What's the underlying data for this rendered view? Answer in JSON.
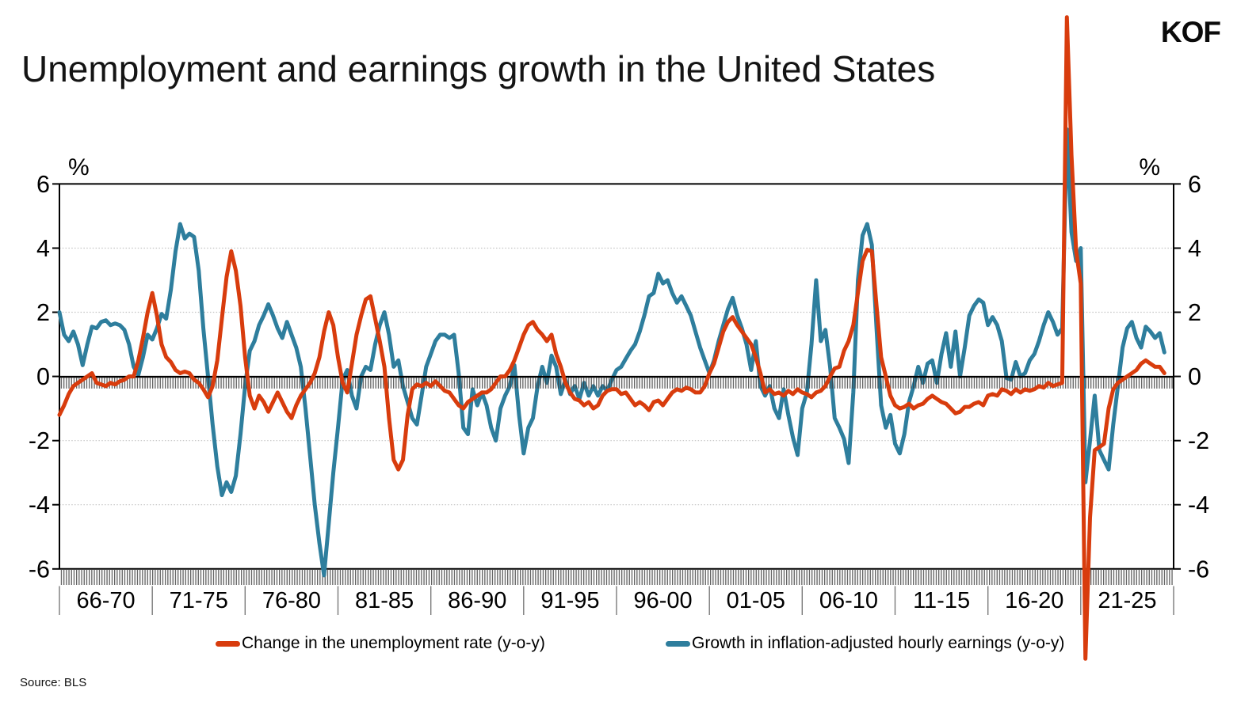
{
  "logo": "KOF",
  "source": "Source: BLS",
  "chart_data": {
    "type": "line",
    "title": "Unemployment and earnings growth in the United States",
    "unit_label_left": "%",
    "unit_label_right": "%",
    "ylim": [
      -6,
      6
    ],
    "yticks": [
      6,
      4,
      2,
      0,
      -2,
      -4,
      -6
    ],
    "gridlines_at": [
      4,
      2,
      -2,
      -4
    ],
    "grid": "dotted-horizontal",
    "legend_position": "bottom",
    "x_bin_labels": [
      "66-70",
      "71-75",
      "76-80",
      "81-85",
      "86-90",
      "91-95",
      "96-00",
      "01-05",
      "06-10",
      "11-15",
      "16-20",
      "21-25"
    ],
    "x_start": 1966,
    "x_end": 2026,
    "x_step_years": 0.25,
    "series": [
      {
        "name": "Change in the unemployment rate (y-o-y)",
        "color": "#d83c0d",
        "values": [
          -1.2,
          -0.9,
          -0.55,
          -0.3,
          -0.2,
          -0.1,
          0,
          0.1,
          -0.2,
          -0.25,
          -0.3,
          -0.2,
          -0.25,
          -0.15,
          -0.1,
          0,
          0,
          0.5,
          1.2,
          2,
          2.6,
          1.9,
          1,
          0.6,
          0.45,
          0.2,
          0.1,
          0.15,
          0.1,
          -0.1,
          -0.2,
          -0.4,
          -0.65,
          -0.3,
          0.5,
          1.8,
          3.1,
          3.9,
          3.3,
          2.2,
          0.6,
          -0.6,
          -1,
          -0.6,
          -0.8,
          -1.1,
          -0.8,
          -0.5,
          -0.8,
          -1.1,
          -1.3,
          -0.9,
          -0.6,
          -0.4,
          -0.2,
          0.1,
          0.6,
          1.4,
          2,
          1.6,
          0.6,
          -0.2,
          -0.5,
          0.4,
          1.3,
          1.9,
          2.4,
          2.5,
          1.8,
          1.1,
          0.3,
          -1.3,
          -2.6,
          -2.9,
          -2.6,
          -1.2,
          -0.4,
          -0.25,
          -0.3,
          -0.2,
          -0.3,
          -0.15,
          -0.3,
          -0.45,
          -0.5,
          -0.7,
          -0.9,
          -1,
          -0.8,
          -0.7,
          -0.6,
          -0.5,
          -0.5,
          -0.4,
          -0.2,
          0,
          0,
          0.2,
          0.5,
          0.9,
          1.3,
          1.6,
          1.7,
          1.45,
          1.3,
          1.1,
          1.3,
          0.7,
          0.3,
          -0.2,
          -0.5,
          -0.7,
          -0.75,
          -0.9,
          -0.8,
          -1,
          -0.9,
          -0.6,
          -0.45,
          -0.4,
          -0.4,
          -0.55,
          -0.5,
          -0.7,
          -0.9,
          -0.8,
          -0.9,
          -1.05,
          -0.8,
          -0.75,
          -0.9,
          -0.7,
          -0.5,
          -0.4,
          -0.45,
          -0.35,
          -0.4,
          -0.5,
          -0.5,
          -0.3,
          0.1,
          0.4,
          0.9,
          1.4,
          1.7,
          1.85,
          1.6,
          1.4,
          1.2,
          1,
          0.6,
          0.1,
          -0.5,
          -0.4,
          -0.55,
          -0.5,
          -0.6,
          -0.45,
          -0.55,
          -0.4,
          -0.5,
          -0.55,
          -0.65,
          -0.5,
          -0.45,
          -0.3,
          0,
          0.25,
          0.3,
          0.8,
          1.1,
          1.6,
          2.6,
          3.6,
          3.95,
          3.9,
          2.2,
          0.6,
          0,
          -0.6,
          -0.9,
          -1,
          -0.95,
          -0.85,
          -1,
          -0.9,
          -0.85,
          -0.7,
          -0.6,
          -0.7,
          -0.8,
          -0.85,
          -1,
          -1.15,
          -1.1,
          -0.95,
          -0.95,
          -0.85,
          -0.8,
          -0.9,
          -0.6,
          -0.55,
          -0.6,
          -0.4,
          -0.45,
          -0.55,
          -0.4,
          -0.5,
          -0.4,
          -0.45,
          -0.4,
          -0.3,
          -0.35,
          -0.2,
          -0.3,
          -0.25,
          -0.2,
          11.2,
          6.9,
          3.9,
          2.9,
          -8.8,
          -4.4,
          -2.3,
          -2.2,
          -2.1,
          -1,
          -0.4,
          -0.2,
          -0.1,
          0,
          0.1,
          0.2,
          0.4,
          0.5,
          0.4,
          0.3,
          0.3,
          0.1
        ]
      },
      {
        "name": "Growth in inflation-adjusted hourly earnings (y-o-y)",
        "color": "#2e7e9d",
        "values": [
          2,
          1.3,
          1.1,
          1.4,
          1,
          0.35,
          1,
          1.55,
          1.5,
          1.7,
          1.75,
          1.6,
          1.65,
          1.6,
          1.45,
          1,
          0.3,
          0.05,
          0.6,
          1.3,
          1.15,
          1.5,
          1.95,
          1.8,
          2.7,
          3.9,
          4.75,
          4.3,
          4.45,
          4.35,
          3.3,
          1.5,
          0,
          -1.5,
          -2.8,
          -3.7,
          -3.3,
          -3.6,
          -3.1,
          -1.8,
          -0.3,
          0.8,
          1.1,
          1.6,
          1.9,
          2.25,
          1.9,
          1.5,
          1.2,
          1.7,
          1.3,
          0.9,
          0.3,
          -1,
          -2.5,
          -4,
          -5.2,
          -6.2,
          -4.6,
          -3,
          -1.6,
          -0.1,
          0.2,
          -0.6,
          -1,
          0,
          0.3,
          0.2,
          1,
          1.6,
          2,
          1.3,
          0.3,
          0.5,
          -0.3,
          -0.8,
          -1.3,
          -1.5,
          -0.6,
          0.3,
          0.7,
          1.1,
          1.3,
          1.3,
          1.2,
          1.3,
          0.1,
          -1.6,
          -1.8,
          -0.4,
          -0.9,
          -0.5,
          -0.9,
          -1.6,
          -2,
          -1,
          -0.6,
          -0.3,
          0.35,
          -1.2,
          -2.4,
          -1.6,
          -1.3,
          -0.3,
          0.3,
          -0.2,
          0.65,
          0.3,
          -0.55,
          -0.1,
          -0.55,
          -0.3,
          -0.7,
          -0.2,
          -0.6,
          -0.3,
          -0.6,
          -0.3,
          -0.45,
          -0.1,
          0.2,
          0.3,
          0.55,
          0.8,
          1,
          1.4,
          1.9,
          2.5,
          2.6,
          3.2,
          2.9,
          3,
          2.6,
          2.3,
          2.5,
          2.2,
          1.9,
          1.4,
          0.9,
          0.5,
          0.1,
          0.5,
          1.1,
          1.6,
          2.1,
          2.45,
          1.9,
          1.5,
          1,
          0.2,
          1.1,
          -0.3,
          -0.6,
          -0.3,
          -1,
          -1.3,
          -0.4,
          -1.2,
          -1.9,
          -2.45,
          -1,
          -0.5,
          1,
          3,
          1.1,
          1.45,
          0.3,
          -1.3,
          -1.6,
          -1.95,
          -2.7,
          -0.5,
          3,
          4.4,
          4.75,
          4.1,
          1.5,
          -0.9,
          -1.6,
          -1.2,
          -2.1,
          -2.4,
          -1.8,
          -0.8,
          -0.3,
          0.3,
          -0.2,
          0.4,
          0.5,
          -0.2,
          0.7,
          1.35,
          0.3,
          1.4,
          0,
          0.9,
          1.9,
          2.2,
          2.4,
          2.3,
          1.6,
          1.85,
          1.6,
          1.1,
          -0.05,
          -0.1,
          0.45,
          0,
          0.1,
          0.5,
          0.7,
          1.1,
          1.6,
          2,
          1.7,
          1.3,
          1.5,
          7.7,
          4.5,
          3.6,
          4,
          -3.3,
          -2,
          -0.6,
          -2.3,
          -2.6,
          -2.9,
          -1.5,
          -0.3,
          0.9,
          1.5,
          1.7,
          1.2,
          0.9,
          1.55,
          1.4,
          1.2,
          1.35,
          0.75
        ]
      }
    ]
  }
}
